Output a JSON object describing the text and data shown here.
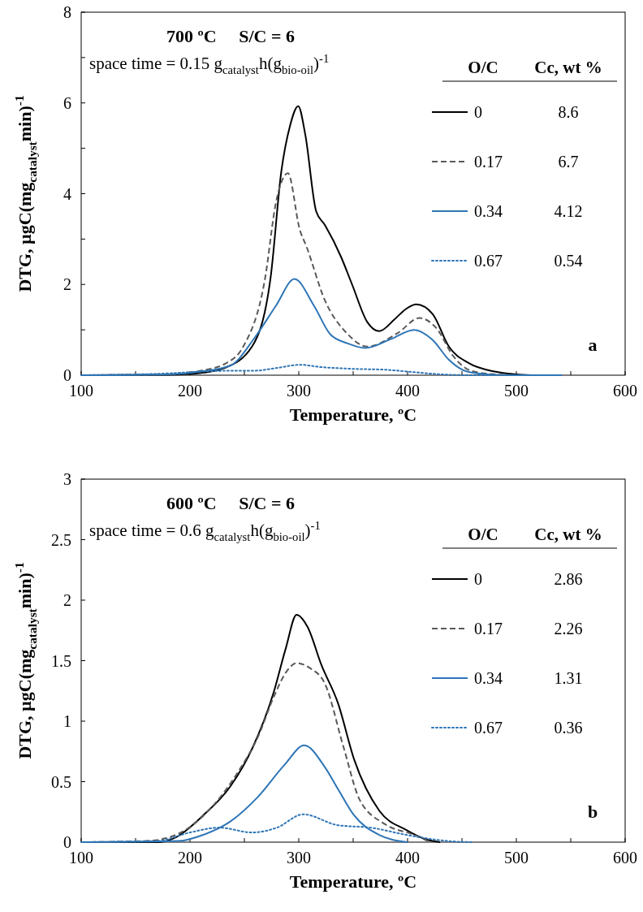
{
  "chart_data": [
    {
      "type": "line",
      "title": "700 ºC     S/C = 6",
      "subtitle": "space time = 0.15 g$_{catalyst}$h(g$_{bio-oil}$)$^{-1}$",
      "xlabel": "Temperature, ºC",
      "ylabel": "DTG, µgC(mg$_{catalyst}$min)$^{-1}$",
      "legend_title": "O/C",
      "annotations": [
        "Cc, wt %",
        "8.6",
        "6.7",
        "4.12",
        "0.54",
        "a"
      ],
      "legend": "top right",
      "grid": false,
      "xlim": [
        100,
        600
      ],
      "ylim": [
        0,
        8
      ],
      "xticks": [
        100,
        {
          "value": 150,
          "label": null
        },
        200,
        {
          "value": 250,
          "label": null
        },
        300,
        {
          "value": 350,
          "label": null
        },
        400,
        {
          "value": 450,
          "label": null
        },
        500,
        {
          "value": 550,
          "label": null
        },
        600
      ],
      "yticks": [
        0,
        {
          "value": 1,
          "label": null
        },
        2,
        {
          "value": 3,
          "label": null
        },
        4,
        {
          "value": 5,
          "label": null
        },
        6,
        {
          "value": 7,
          "label": null
        },
        8
      ],
      "series": [
        {
          "name": "0",
          "color": "#000000",
          "line_style": "solid",
          "x": [
            100,
            180,
            210,
            232,
            257,
            274,
            284,
            292,
            299.5,
            306,
            316,
            324,
            339,
            349,
            363,
            374,
            388,
            398,
            408,
            423,
            438,
            456,
            480,
            500,
            514
          ],
          "values": [
            0,
            0.01,
            0.05,
            0.16,
            0.63,
            2.13,
            4.5,
            5.5,
            5.93,
            5.3,
            3.61,
            3.31,
            2.6,
            2.0,
            1.17,
            0.97,
            1.23,
            1.45,
            1.56,
            1.35,
            0.63,
            0.27,
            0.08,
            0.02,
            0
          ]
        },
        {
          "name": "0.17",
          "color": "#595959",
          "line_style": "dashed",
          "x": [
            100,
            180,
            210,
            232,
            249,
            269,
            279,
            290,
            301,
            307,
            324,
            344,
            363,
            391,
            411,
            426,
            443,
            458,
            480,
            500
          ],
          "values": [
            0,
            0.02,
            0.1,
            0.25,
            0.63,
            2.13,
            3.8,
            4.45,
            3.2,
            2.84,
            1.65,
            0.93,
            0.63,
            0.93,
            1.26,
            1.05,
            0.39,
            0.1,
            0.02,
            0
          ]
        },
        {
          "name": "0.34",
          "color": "#2e75b6",
          "line_style": "solid",
          "x": [
            100,
            180,
            210,
            237,
            259,
            279,
            296,
            314,
            329,
            345,
            361,
            385,
            406,
            423,
            438,
            456,
            480,
            510,
            542
          ],
          "values": [
            0,
            0.02,
            0.08,
            0.21,
            0.81,
            1.53,
            2.12,
            1.53,
            0.9,
            0.7,
            0.6,
            0.8,
            1.0,
            0.78,
            0.34,
            0.07,
            0.01,
            0,
            0
          ]
        },
        {
          "name": "0.67",
          "color": "#2e75b6",
          "line_style": "dotted",
          "x": [
            100,
            180,
            210,
            240,
            260,
            280,
            301,
            320,
            350,
            380,
            400,
            430,
            460,
            480
          ],
          "values": [
            0,
            0.04,
            0.08,
            0.1,
            0.1,
            0.16,
            0.23,
            0.18,
            0.14,
            0.12,
            0.08,
            0.02,
            0,
            0
          ]
        }
      ]
    },
    {
      "type": "line",
      "title": "600 ºC     S/C = 6",
      "subtitle": "space time = 0.6 g$_{catalyst}$h(g$_{bio-oil}$)$^{-1}$",
      "xlabel": "Temperature, ºC",
      "ylabel": "DTG, µgC(mg$_{catalyst}$min)$^{-1}$",
      "legend_title": "O/C",
      "annotations": [
        "Cc, wt %",
        "2.86",
        "2.26",
        "1.31",
        "0.36",
        "b"
      ],
      "legend": "top right",
      "grid": false,
      "xlim": [
        100,
        600
      ],
      "ylim": [
        0,
        3
      ],
      "xticks": [
        100,
        {
          "value": 150,
          "label": null
        },
        200,
        {
          "value": 250,
          "label": null
        },
        300,
        {
          "value": 350,
          "label": null
        },
        400,
        {
          "value": 450,
          "label": null
        },
        500,
        {
          "value": 550,
          "label": null
        },
        600
      ],
      "yticks": [
        0,
        0.5,
        1,
        1.5,
        2,
        2.5,
        3
      ],
      "series": [
        {
          "name": "0",
          "color": "#000000",
          "line_style": "solid",
          "x": [
            100,
            170,
            187,
            212,
            237,
            257,
            277,
            288,
            298,
            308,
            321,
            336,
            351,
            374,
            399,
            418,
            430
          ],
          "values": [
            0,
            0,
            0.04,
            0.22,
            0.46,
            0.77,
            1.24,
            1.6,
            1.88,
            1.78,
            1.46,
            1.15,
            0.68,
            0.26,
            0.1,
            0.02,
            0
          ]
        },
        {
          "name": "0.17",
          "color": "#595959",
          "line_style": "dashed",
          "x": [
            100,
            160,
            187,
            219,
            247,
            262,
            277,
            288,
            298,
            310,
            324,
            341,
            356,
            379,
            406,
            421
          ],
          "values": [
            0,
            0.01,
            0.06,
            0.28,
            0.62,
            0.86,
            1.2,
            1.4,
            1.48,
            1.44,
            1.31,
            0.79,
            0.35,
            0.15,
            0.06,
            0
          ]
        },
        {
          "name": "0.34",
          "color": "#2e75b6",
          "line_style": "solid",
          "x": [
            100,
            190,
            212,
            237,
            262,
            287,
            305,
            324,
            336,
            351,
            374,
            386,
            400
          ],
          "values": [
            0,
            0.01,
            0.06,
            0.17,
            0.37,
            0.64,
            0.8,
            0.62,
            0.44,
            0.22,
            0.06,
            0.02,
            0
          ]
        },
        {
          "name": "0.67",
          "color": "#2e75b6",
          "line_style": "dotted",
          "x": [
            100,
            170,
            200,
            227,
            257,
            280,
            304,
            336,
            366,
            399,
            436,
            460
          ],
          "values": [
            0,
            0.01,
            0.08,
            0.12,
            0.08,
            0.12,
            0.23,
            0.14,
            0.12,
            0.06,
            0.01,
            0
          ]
        }
      ]
    }
  ]
}
